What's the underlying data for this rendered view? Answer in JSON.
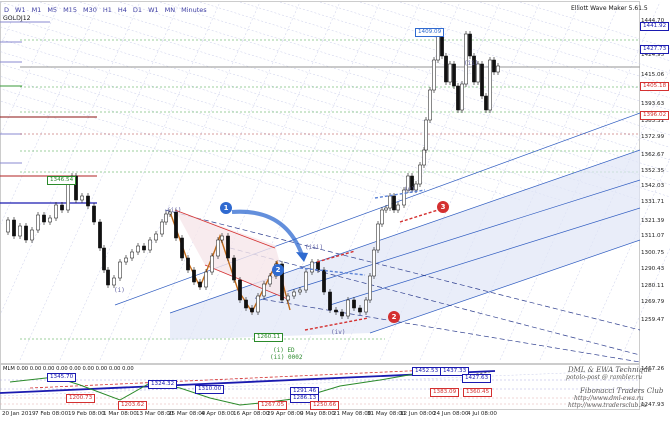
{
  "chart": {
    "symbol": "GOLDJ12",
    "indicator_title": "Elliott Wave Maker 5.61.5",
    "timeframes": [
      "D",
      "W1",
      "M1",
      "M5",
      "M15",
      "M30",
      "H1",
      "H4",
      "D1",
      "W1",
      "MN",
      "Minutes"
    ],
    "sub_title": "MLM 0.00 0.00 0.00 0.00 0.00 0.00 0.00 0.00 0.00"
  },
  "y_axis_labels": [
    "1444.70",
    "1434.91",
    "1424.95",
    "1415.06",
    "1405.41",
    "1393.63",
    "1383.31",
    "1372.99",
    "1362.67",
    "1352.35",
    "1342.03",
    "1331.71",
    "1321.39",
    "1311.07",
    "1300.75",
    "1290.43",
    "1280.11",
    "1269.79",
    "1259.47"
  ],
  "sub_axis_labels": [
    "1467.26",
    "1247.93"
  ],
  "x_axis_labels": [
    "20 Jan 2019",
    "7 Feb 08:00",
    "19 Feb 08:00",
    "1 Mar 08:00",
    "13 Mar 08:00",
    "25 Mar 08:00",
    "4 Apr 08:00",
    "16 Apr 08:00",
    "29 Apr 08:00",
    "9 May 08:00",
    "21 May 08:00",
    "31 May 08:00",
    "12 Jun 08:00",
    "24 Jun 08:00",
    "4 Jul 08:00"
  ],
  "price_boxes": {
    "p1441": "1441.92",
    "p1427": "1427.73",
    "p1405": "1405.18",
    "p1396": "1396.02",
    "p1409": "1409.09",
    "p1346": "1346.54",
    "p1260": "1260.11"
  },
  "sub_price_boxes": {
    "a": "1452.53",
    "b": "1437.33",
    "c": "1427.63",
    "d": "1383.09",
    "e": "1360.45",
    "f": "1345.70",
    "g": "1324.32",
    "h": "1310.00",
    "i": "1291.46",
    "j": "1286.13",
    "k": "1267.05",
    "l": "1250.66",
    "m": "1200.73",
    "n": "1203.62"
  },
  "wave_labels": {
    "l1": "(i) ED",
    "l2": "(ii) 0002",
    "l3": "(ii)",
    "l4": "(iv)",
    "l5": "(iii)",
    "l6": "(v)",
    "l7": "(i)",
    "l8": "(ii)"
  },
  "markers": [
    "1",
    "2",
    "3",
    "2",
    "3"
  ],
  "signature": {
    "l1": "DML & EWA Technique",
    "l2": "potolo-post @ rambler.ru",
    "l3": "Fibonacci  Traders  Club",
    "l4": "http://www.dml-ewa.ru",
    "l5": "http://www.tradersclub.ru"
  },
  "colors": {
    "bull": "#2f6ad0",
    "bear": "#d43030",
    "wave": "#c06a1a",
    "green": "#2a8a2a",
    "text": "#222222"
  }
}
